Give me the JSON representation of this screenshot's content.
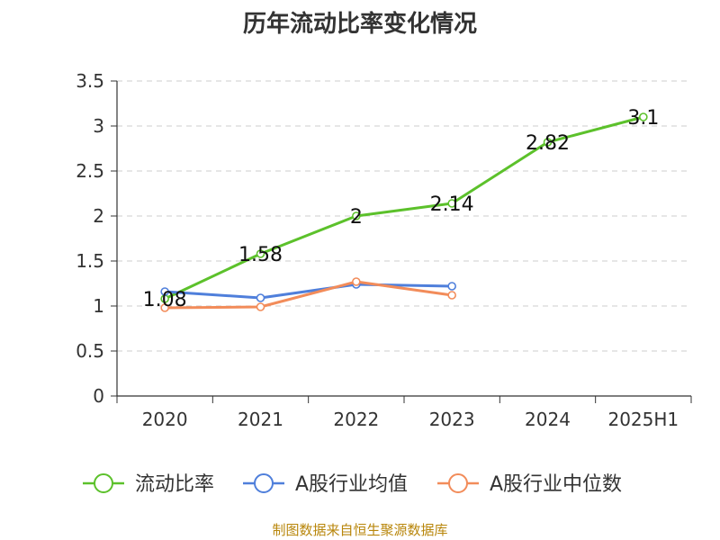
{
  "chart_data": {
    "type": "line",
    "title": "历年流动比率变化情况",
    "categories": [
      "2020",
      "2021",
      "2022",
      "2023",
      "2024",
      "2025H1"
    ],
    "ylim": [
      0,
      3.5
    ],
    "yticks": [
      "0",
      "0.5",
      "1",
      "1.5",
      "2",
      "2.5",
      "3",
      "3.5"
    ],
    "grid": true,
    "legend_position": "bottom",
    "series": [
      {
        "name": "流动比率",
        "color": "#5cc12b",
        "values": [
          1.08,
          1.58,
          2,
          2.14,
          2.82,
          3.1
        ],
        "labels": [
          "1.08",
          "1.58",
          "2",
          "2.14",
          "2.82",
          "3.1"
        ],
        "show_labels": true
      },
      {
        "name": "A股行业均值",
        "color": "#4f7fdb",
        "values": [
          1.16,
          1.09,
          1.24,
          1.22,
          null,
          null
        ],
        "show_labels": false
      },
      {
        "name": "A股行业中位数",
        "color": "#f28c5a",
        "values": [
          0.98,
          0.99,
          1.27,
          1.12,
          null,
          null
        ],
        "show_labels": false
      }
    ]
  },
  "source_note": "制图数据来自恒生聚源数据库"
}
